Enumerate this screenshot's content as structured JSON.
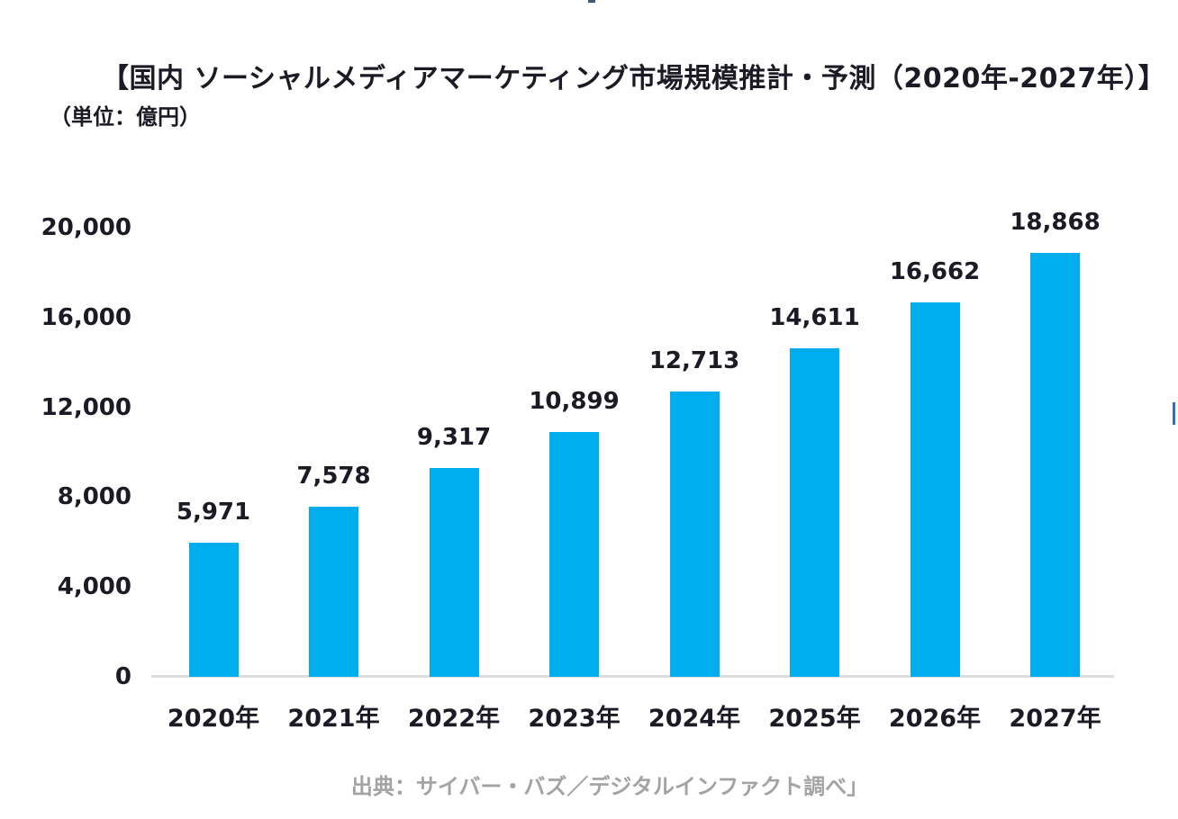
{
  "page": {
    "background": "#ffffff"
  },
  "chart_data": {
    "type": "bar",
    "title": "【国内 ソーシャルメディアマーケティング市場規模推計・予測（2020年-2027年）】",
    "unit_label": "（単位：億円）",
    "source": "出典：サイバー・バズ／デジタルインファクト調べ」",
    "categories": [
      "2020年",
      "2021年",
      "2022年",
      "2023年",
      "2024年",
      "2025年",
      "2026年",
      "2027年"
    ],
    "values": [
      5971,
      7578,
      9317,
      10899,
      12713,
      14611,
      16662,
      18868
    ],
    "data_labels": [
      "5,971",
      "7,578",
      "9,317",
      "10,899",
      "12,713",
      "14,611",
      "16,662",
      "18,868"
    ],
    "ylim": [
      0,
      20000
    ],
    "y_ticks": [
      {
        "label": "20,000",
        "value": 20000
      },
      {
        "label": "16,000",
        "value": 16000
      },
      {
        "label": "12,000",
        "value": 12000
      },
      {
        "label": "8,000",
        "value": 8000
      },
      {
        "label": "4,000",
        "value": 4000
      },
      {
        "label": "0",
        "value": 0
      }
    ],
    "grid": false,
    "legend_position": "none",
    "colors": {
      "bar": "#00aeef",
      "axis_line": "#dcdcdc",
      "text": "#1b1b26",
      "source_text": "#a3a3a3"
    }
  },
  "artifacts": {
    "top_cropped_mark_color": "#3e5a78",
    "right_cropped_mark_color": "#2f6db5"
  }
}
